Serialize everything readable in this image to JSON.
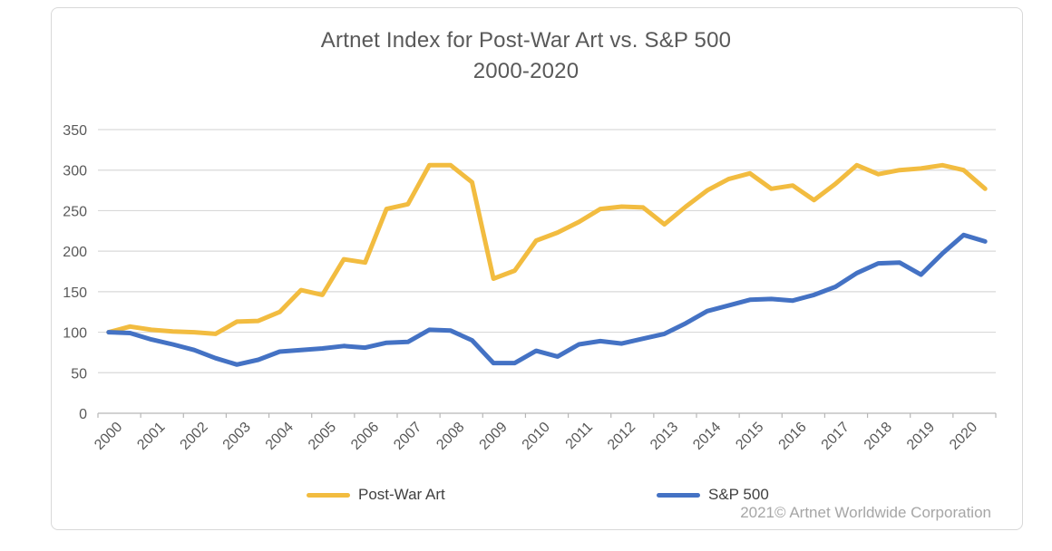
{
  "chart": {
    "title_line1": "Artnet Index for Post-War Art vs. S&P 500",
    "title_line2": "2000-2020",
    "copyright": "2021© Artnet Worldwide Corporation",
    "legend": [
      {
        "label": "Post-War Art",
        "color": "#F2BC40"
      },
      {
        "label": "S&P 500",
        "color": "#4472C4"
      }
    ]
  },
  "chart_data": {
    "type": "line",
    "title": "Artnet Index for Post-War Art vs. S&P 500 2000-2020",
    "xlabel": "",
    "ylabel": "",
    "ylim": [
      0,
      350
    ],
    "y_ticks": [
      0,
      50,
      100,
      150,
      200,
      250,
      300,
      350
    ],
    "x_tick_labels": [
      "2000",
      "2001",
      "2002",
      "2003",
      "2004",
      "2005",
      "2006",
      "2007",
      "2008",
      "2009",
      "2010",
      "2011",
      "2012",
      "2013",
      "2014",
      "2015",
      "2016",
      "2017",
      "2018",
      "2019",
      "2020"
    ],
    "grid": "horizontal",
    "legend_position": "bottom",
    "x": [
      2000,
      2000.5,
      2001,
      2001.5,
      2002,
      2002.5,
      2003,
      2003.5,
      2004,
      2004.5,
      2005,
      2005.5,
      2006,
      2006.5,
      2007,
      2007.5,
      2008,
      2008.5,
      2009,
      2009.5,
      2010,
      2010.5,
      2011,
      2011.5,
      2012,
      2012.5,
      2013,
      2013.5,
      2014,
      2014.5,
      2015,
      2015.5,
      2016,
      2016.5,
      2017,
      2017.5,
      2018,
      2018.5,
      2019,
      2019.5,
      2020,
      2020.5
    ],
    "series": [
      {
        "name": "Post-War Art",
        "color": "#F2BC40",
        "values": [
          100,
          107,
          103,
          101,
          100,
          98,
          113,
          114,
          125,
          152,
          146,
          190,
          186,
          252,
          258,
          306,
          306,
          285,
          166,
          176,
          213,
          223,
          236,
          252,
          255,
          254,
          233,
          255,
          275,
          289,
          296,
          277,
          281,
          263,
          283,
          306,
          295,
          300,
          302,
          306,
          300,
          277
        ]
      },
      {
        "name": "S&P 500",
        "color": "#4472C4",
        "values": [
          100,
          99,
          91,
          85,
          78,
          68,
          60,
          66,
          76,
          78,
          80,
          83,
          81,
          87,
          88,
          103,
          102,
          90,
          62,
          62,
          77,
          70,
          85,
          89,
          86,
          92,
          98,
          111,
          126,
          133,
          140,
          141,
          139,
          146,
          156,
          173,
          185,
          186,
          171,
          197,
          220,
          212
        ]
      }
    ]
  }
}
